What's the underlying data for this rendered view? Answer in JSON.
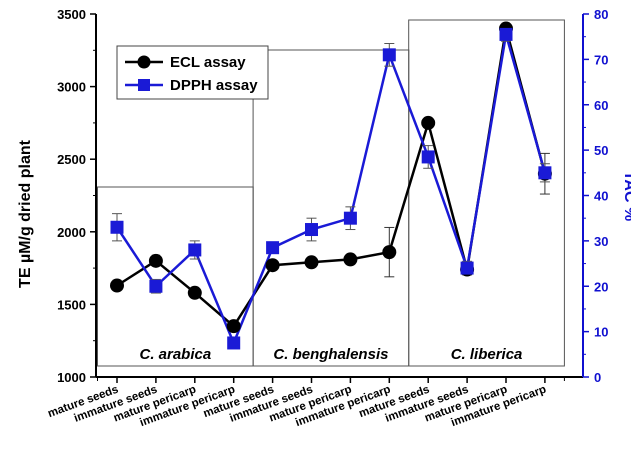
{
  "chart_data": {
    "type": "line",
    "categories": [
      "mature seeds",
      "immature seeds",
      "mature pericarp",
      "immature pericarp",
      "mature seeds",
      "immature seeds",
      "mature pericarp",
      "immature pericarp",
      "mature seeds",
      "immature seeds",
      "mature pericarp",
      "immature pericarp"
    ],
    "groups": [
      {
        "label": "C. arabica",
        "span": [
          0,
          3
        ]
      },
      {
        "label": "C. benghalensis",
        "span": [
          4,
          7
        ]
      },
      {
        "label": "C. liberica",
        "span": [
          8,
          11
        ]
      }
    ],
    "ylabel": "TE µM/g dried plant",
    "y2label": "TAC %",
    "ylim": [
      1000,
      3500
    ],
    "y2lim": [
      0,
      80
    ],
    "yticks": [
      1000,
      1500,
      2000,
      2500,
      3000,
      3500
    ],
    "y2ticks": [
      0,
      10,
      20,
      30,
      40,
      50,
      60,
      70,
      80
    ],
    "legend_position": "top-left",
    "series": [
      {
        "name": "ECL assay",
        "axis": "left",
        "color": "#000000",
        "marker": "circle",
        "values": [
          1630,
          1800,
          1580,
          1350,
          1770,
          1790,
          1810,
          1860,
          2750,
          1740,
          3400,
          2400
        ],
        "errors": [
          0,
          0,
          0,
          0,
          0,
          0,
          0,
          170,
          0,
          0,
          0,
          140
        ]
      },
      {
        "name": "DPPH assay",
        "axis": "right",
        "color": "#1a1ad6",
        "marker": "square",
        "values": [
          33,
          20,
          28,
          7.5,
          28.5,
          32.5,
          35,
          71,
          48.5,
          24,
          75.5,
          45
        ],
        "errors": [
          3,
          1.5,
          2,
          0,
          0,
          2.5,
          2.5,
          2.5,
          2.5,
          1.5,
          1.5,
          2
        ]
      }
    ]
  }
}
